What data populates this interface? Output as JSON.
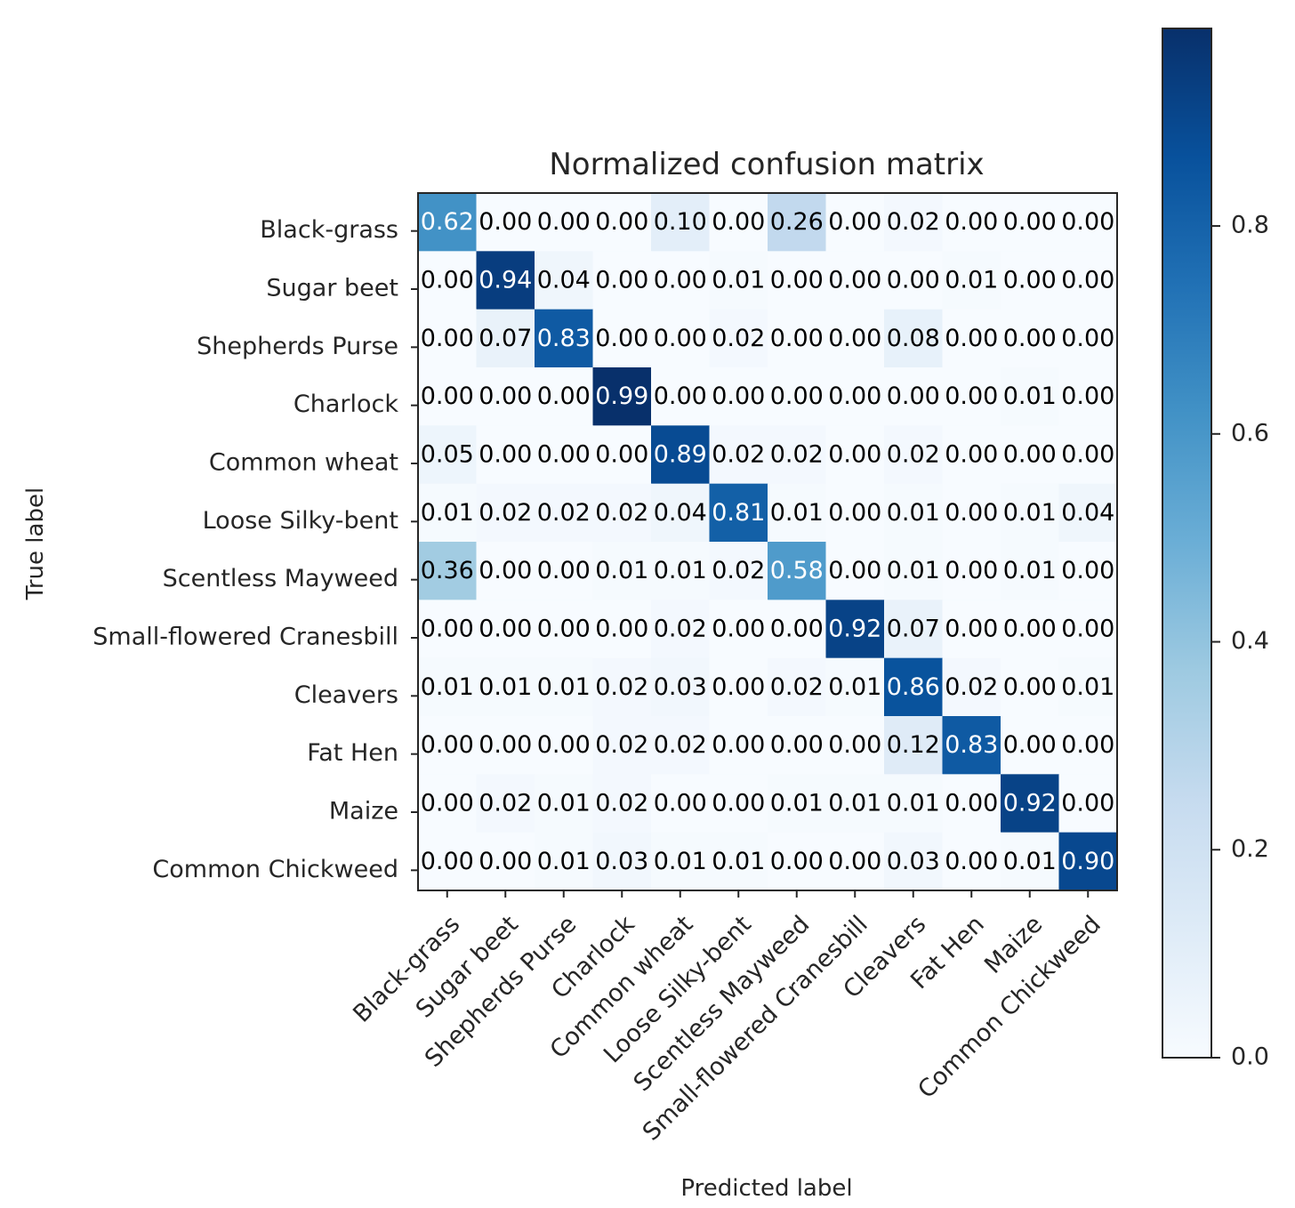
{
  "chart_data": {
    "type": "heatmap",
    "title": "Normalized confusion matrix",
    "xlabel": "Predicted label",
    "ylabel": "True label",
    "row_labels": [
      "Black-grass",
      "Sugar beet",
      "Shepherds Purse",
      "Charlock",
      "Common wheat",
      "Loose Silky-bent",
      "Scentless Mayweed",
      "Small-flowered Cranesbill",
      "Cleavers",
      "Fat Hen",
      "Maize",
      "Common Chickweed"
    ],
    "col_labels": [
      "Black-grass",
      "Sugar beet",
      "Shepherds Purse",
      "Charlock",
      "Common wheat",
      "Loose Silky-bent",
      "Scentless Mayweed",
      "Small-flowered Cranesbill",
      "Cleavers",
      "Fat Hen",
      "Maize",
      "Common Chickweed"
    ],
    "values": [
      [
        0.62,
        0.0,
        0.0,
        0.0,
        0.1,
        0.0,
        0.26,
        0.0,
        0.02,
        0.0,
        0.0,
        0.0
      ],
      [
        0.0,
        0.94,
        0.04,
        0.0,
        0.0,
        0.01,
        0.0,
        0.0,
        0.0,
        0.01,
        0.0,
        0.0
      ],
      [
        0.0,
        0.07,
        0.83,
        0.0,
        0.0,
        0.02,
        0.0,
        0.0,
        0.08,
        0.0,
        0.0,
        0.0
      ],
      [
        0.0,
        0.0,
        0.0,
        0.99,
        0.0,
        0.0,
        0.0,
        0.0,
        0.0,
        0.0,
        0.01,
        0.0
      ],
      [
        0.05,
        0.0,
        0.0,
        0.0,
        0.89,
        0.02,
        0.02,
        0.0,
        0.02,
        0.0,
        0.0,
        0.0
      ],
      [
        0.01,
        0.02,
        0.02,
        0.02,
        0.04,
        0.81,
        0.01,
        0.0,
        0.01,
        0.0,
        0.01,
        0.04
      ],
      [
        0.36,
        0.0,
        0.0,
        0.01,
        0.01,
        0.02,
        0.58,
        0.0,
        0.01,
        0.0,
        0.01,
        0.0
      ],
      [
        0.0,
        0.0,
        0.0,
        0.0,
        0.02,
        0.0,
        0.0,
        0.92,
        0.07,
        0.0,
        0.0,
        0.0
      ],
      [
        0.01,
        0.01,
        0.01,
        0.02,
        0.03,
        0.0,
        0.02,
        0.01,
        0.86,
        0.02,
        0.0,
        0.01
      ],
      [
        0.0,
        0.0,
        0.0,
        0.02,
        0.02,
        0.0,
        0.0,
        0.0,
        0.12,
        0.83,
        0.0,
        0.0
      ],
      [
        0.0,
        0.02,
        0.01,
        0.02,
        0.0,
        0.0,
        0.01,
        0.01,
        0.01,
        0.0,
        0.92,
        0.0
      ],
      [
        0.0,
        0.0,
        0.01,
        0.03,
        0.01,
        0.01,
        0.0,
        0.0,
        0.03,
        0.0,
        0.01,
        0.9
      ]
    ],
    "colormap": "Blues",
    "colorbar": {
      "min": 0.0,
      "max": 0.99,
      "ticks": [
        "0.0",
        "0.2",
        "0.4",
        "0.6",
        "0.8"
      ]
    },
    "text_threshold": 0.5,
    "text_color_light": "#ffffff",
    "text_color_dark": "#000000"
  }
}
